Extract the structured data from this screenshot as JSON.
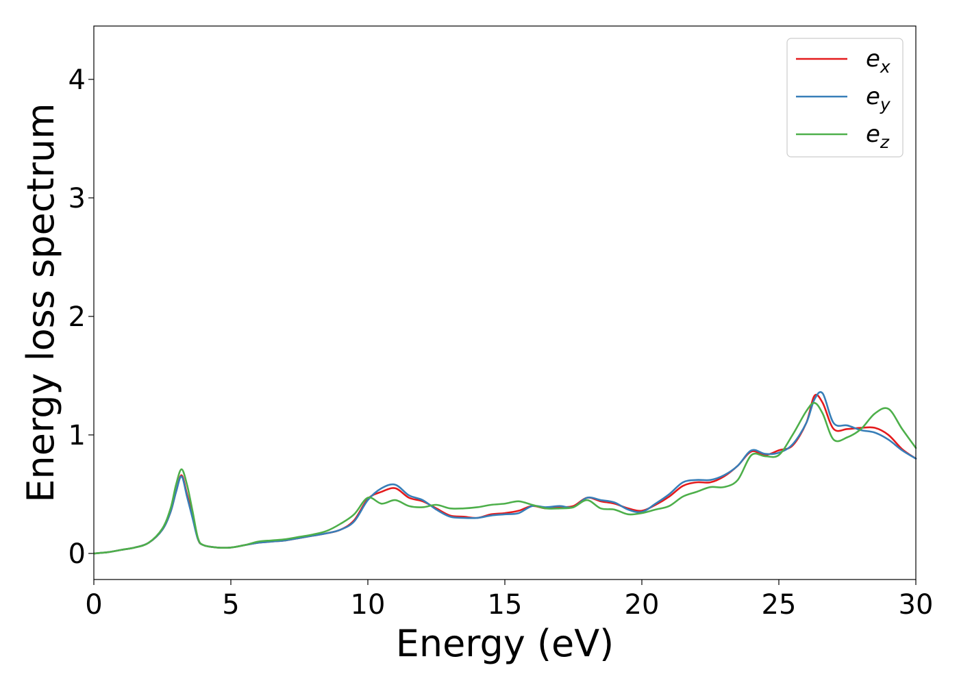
{
  "chart_data": {
    "type": "line",
    "title": "",
    "xlabel": "Energy (eV)",
    "ylabel": "Energy loss spectrum",
    "xlim": [
      0,
      30
    ],
    "ylim": [
      -0.22,
      4.45
    ],
    "xticks": [
      0,
      5,
      10,
      15,
      20,
      25,
      30
    ],
    "yticks": [
      0,
      1,
      2,
      3,
      4
    ],
    "grid": false,
    "legend_position": "top-right",
    "x": [
      0,
      0.5,
      1,
      1.5,
      2,
      2.5,
      2.8,
      3,
      3.2,
      3.4,
      3.6,
      3.8,
      4,
      4.5,
      5,
      5.5,
      6,
      6.5,
      7,
      7.5,
      8,
      8.5,
      9,
      9.5,
      10,
      10.5,
      11,
      11.5,
      12,
      12.5,
      13,
      13.5,
      14,
      14.5,
      15,
      15.5,
      16,
      16.5,
      17,
      17.5,
      18,
      18.5,
      19,
      19.5,
      20,
      20.5,
      21,
      21.5,
      22,
      22.5,
      23,
      23.5,
      24,
      24.5,
      25,
      25.5,
      26,
      26.3,
      26.6,
      27,
      27.5,
      28,
      28.5,
      29,
      29.5,
      30
    ],
    "series": [
      {
        "name": "e_x",
        "label_base": "e",
        "label_sub": "x",
        "color": "#e41a1c",
        "values": [
          0,
          0.01,
          0.03,
          0.05,
          0.09,
          0.2,
          0.35,
          0.52,
          0.66,
          0.5,
          0.32,
          0.12,
          0.07,
          0.05,
          0.05,
          0.07,
          0.09,
          0.1,
          0.11,
          0.13,
          0.15,
          0.17,
          0.2,
          0.28,
          0.46,
          0.52,
          0.55,
          0.47,
          0.44,
          0.38,
          0.32,
          0.31,
          0.3,
          0.33,
          0.34,
          0.36,
          0.4,
          0.38,
          0.39,
          0.4,
          0.47,
          0.44,
          0.42,
          0.38,
          0.36,
          0.41,
          0.48,
          0.57,
          0.6,
          0.6,
          0.65,
          0.74,
          0.86,
          0.83,
          0.87,
          0.91,
          1.1,
          1.33,
          1.27,
          1.05,
          1.05,
          1.06,
          1.06,
          1.0,
          0.88,
          0.8
        ]
      },
      {
        "name": "e_y",
        "label_base": "e",
        "label_sub": "y",
        "color": "#377eb8",
        "values": [
          0,
          0.01,
          0.03,
          0.05,
          0.09,
          0.2,
          0.35,
          0.52,
          0.65,
          0.48,
          0.3,
          0.12,
          0.07,
          0.05,
          0.05,
          0.07,
          0.09,
          0.1,
          0.11,
          0.13,
          0.15,
          0.17,
          0.2,
          0.27,
          0.45,
          0.55,
          0.58,
          0.49,
          0.45,
          0.37,
          0.31,
          0.3,
          0.3,
          0.32,
          0.33,
          0.34,
          0.4,
          0.39,
          0.4,
          0.39,
          0.47,
          0.45,
          0.43,
          0.37,
          0.35,
          0.42,
          0.5,
          0.6,
          0.62,
          0.62,
          0.66,
          0.74,
          0.87,
          0.84,
          0.85,
          0.92,
          1.1,
          1.3,
          1.35,
          1.1,
          1.08,
          1.04,
          1.02,
          0.96,
          0.87,
          0.8
        ]
      },
      {
        "name": "e_z",
        "label_base": "e",
        "label_sub": "z",
        "color": "#4daf4a",
        "values": [
          0,
          0.01,
          0.03,
          0.05,
          0.09,
          0.21,
          0.38,
          0.58,
          0.71,
          0.58,
          0.36,
          0.13,
          0.07,
          0.05,
          0.05,
          0.07,
          0.1,
          0.11,
          0.12,
          0.14,
          0.16,
          0.19,
          0.25,
          0.33,
          0.47,
          0.42,
          0.45,
          0.4,
          0.39,
          0.41,
          0.38,
          0.38,
          0.39,
          0.41,
          0.42,
          0.44,
          0.41,
          0.38,
          0.38,
          0.39,
          0.45,
          0.38,
          0.37,
          0.33,
          0.34,
          0.37,
          0.4,
          0.48,
          0.52,
          0.56,
          0.56,
          0.62,
          0.83,
          0.82,
          0.83,
          1.0,
          1.2,
          1.27,
          1.18,
          0.96,
          0.98,
          1.05,
          1.18,
          1.22,
          1.05,
          0.89
        ]
      }
    ]
  }
}
